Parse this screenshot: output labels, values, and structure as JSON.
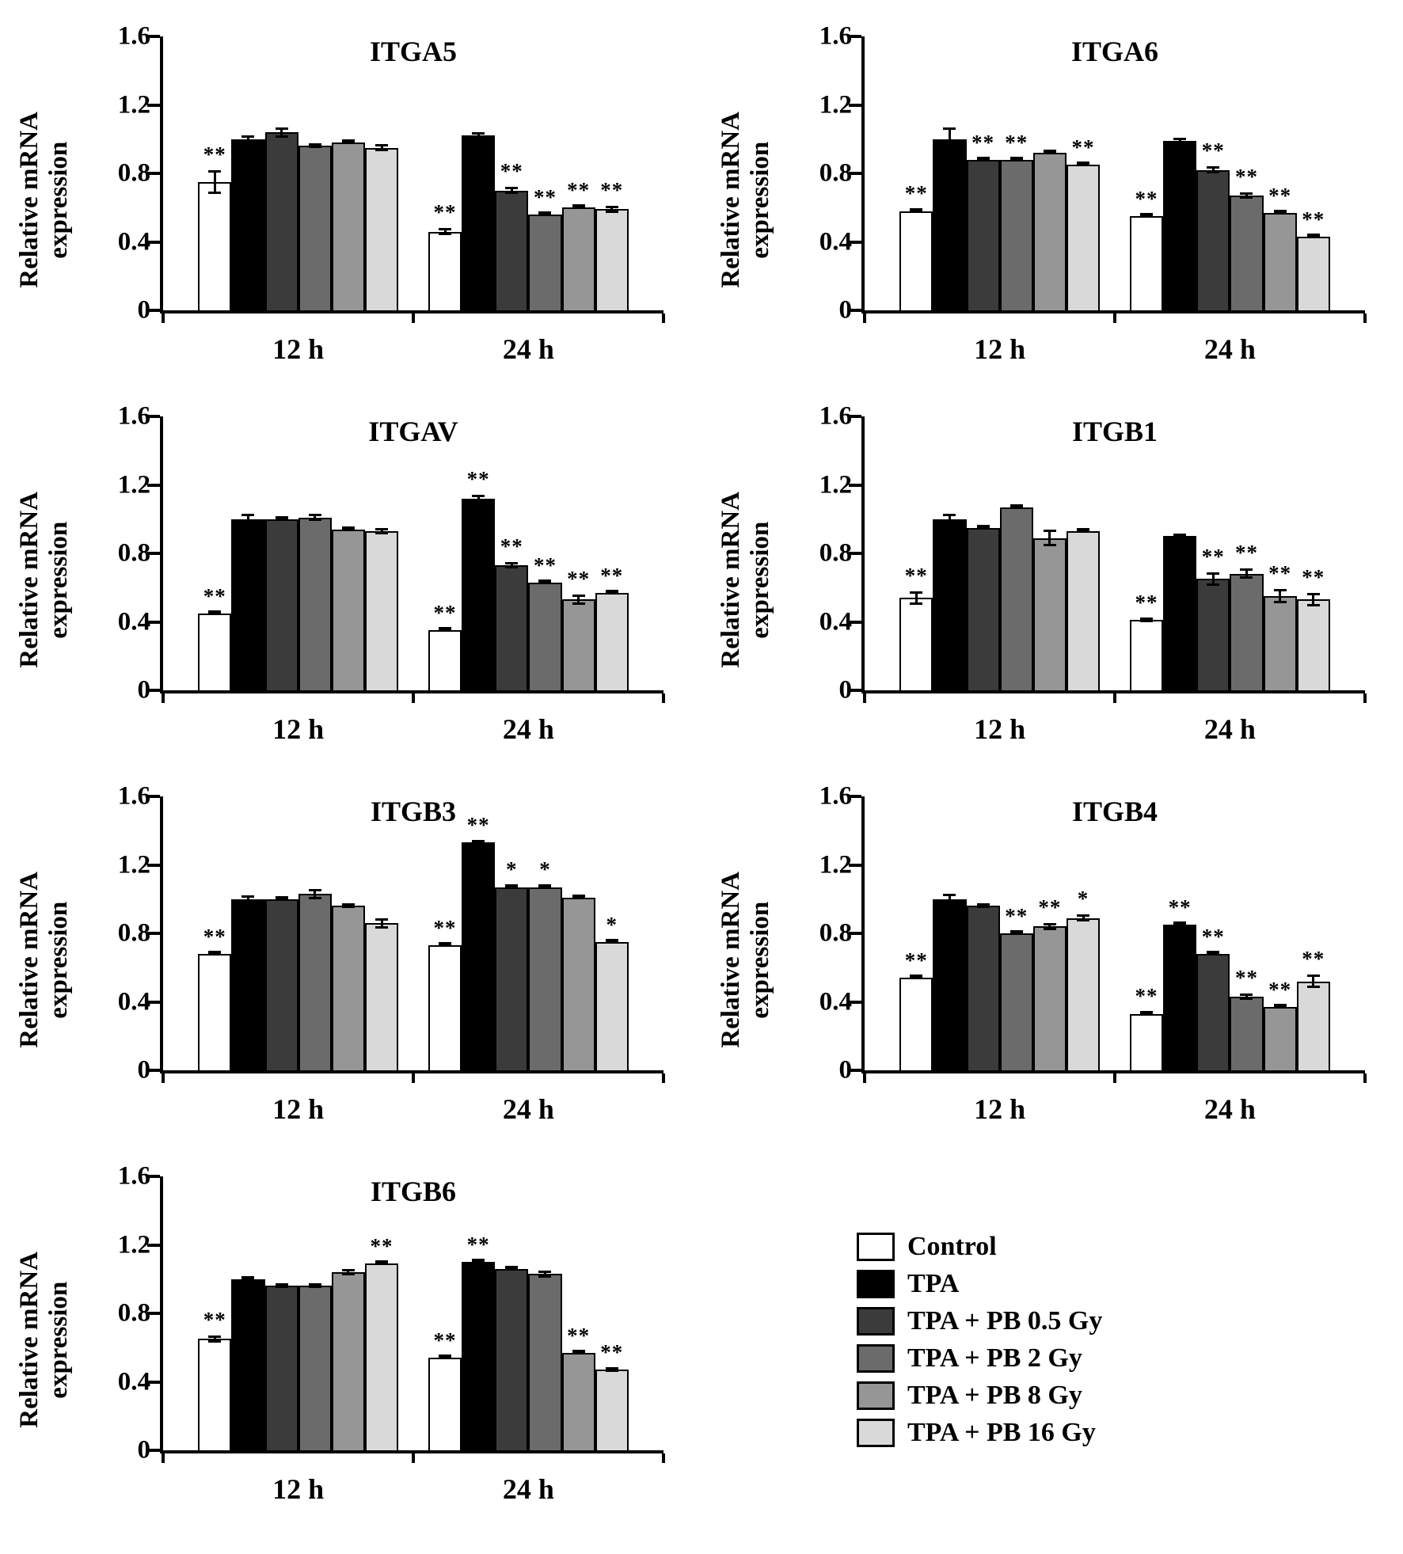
{
  "figure": {
    "ylabel": "Relative mRNA\nexpression",
    "groups": [
      "12 h",
      "24 h"
    ]
  },
  "legend": {
    "items": [
      {
        "label": "Control",
        "color": "#ffffff"
      },
      {
        "label": "TPA",
        "color": "#000000"
      },
      {
        "label": "TPA + PB 0.5 Gy",
        "color": "#3b3b3b"
      },
      {
        "label": "TPA + PB 2 Gy",
        "color": "#6b6b6b"
      },
      {
        "label": "TPA + PB 8 Gy",
        "color": "#969696"
      },
      {
        "label": "TPA + PB 16 Gy",
        "color": "#d9d9d9"
      }
    ]
  },
  "chart_data": [
    {
      "type": "bar",
      "title": "ITGA5",
      "ylabel": "Relative mRNA\nexpression",
      "ylim": [
        0,
        1.6
      ],
      "yticks": [
        0,
        0.4,
        0.8,
        1.2,
        1.6
      ],
      "groups": [
        "12 h",
        "24 h"
      ],
      "series": [
        {
          "name": "Control",
          "values": [
            0.75,
            0.46
          ],
          "errors": [
            0.07,
            0.02
          ],
          "sig": [
            "**",
            "**"
          ]
        },
        {
          "name": "TPA",
          "values": [
            1.0,
            1.02
          ],
          "errors": [
            0.02,
            0.02
          ],
          "sig": [
            "",
            ""
          ]
        },
        {
          "name": "TPA + PB 0.5 Gy",
          "values": [
            1.04,
            0.7
          ],
          "errors": [
            0.03,
            0.02
          ],
          "sig": [
            "",
            "**"
          ]
        },
        {
          "name": "TPA + PB 2 Gy",
          "values": [
            0.96,
            0.56
          ],
          "errors": [
            0.01,
            0.01
          ],
          "sig": [
            "",
            "**"
          ]
        },
        {
          "name": "TPA + PB 8 Gy",
          "values": [
            0.98,
            0.6
          ],
          "errors": [
            0.01,
            0.01
          ],
          "sig": [
            "",
            "**"
          ]
        },
        {
          "name": "TPA + PB 16 Gy",
          "values": [
            0.95,
            0.59
          ],
          "errors": [
            0.02,
            0.02
          ],
          "sig": [
            "",
            "**"
          ]
        }
      ]
    },
    {
      "type": "bar",
      "title": "ITGA6",
      "ylabel": "Relative mRNA\nexpression",
      "ylim": [
        0,
        1.6
      ],
      "yticks": [
        0,
        0.4,
        0.8,
        1.2,
        1.6
      ],
      "groups": [
        "12 h",
        "24 h"
      ],
      "series": [
        {
          "name": "Control",
          "values": [
            0.58,
            0.55
          ],
          "errors": [
            0.01,
            0.01
          ],
          "sig": [
            "**",
            "**"
          ]
        },
        {
          "name": "TPA",
          "values": [
            1.0,
            0.99
          ],
          "errors": [
            0.07,
            0.02
          ],
          "sig": [
            "",
            ""
          ]
        },
        {
          "name": "TPA + PB 0.5 Gy",
          "values": [
            0.88,
            0.82
          ],
          "errors": [
            0.01,
            0.02
          ],
          "sig": [
            "**",
            "**"
          ]
        },
        {
          "name": "TPA + PB 2 Gy",
          "values": [
            0.88,
            0.67
          ],
          "errors": [
            0.01,
            0.02
          ],
          "sig": [
            "**",
            "**"
          ]
        },
        {
          "name": "TPA + PB 8 Gy",
          "values": [
            0.92,
            0.57
          ],
          "errors": [
            0.01,
            0.01
          ],
          "sig": [
            "",
            "**"
          ]
        },
        {
          "name": "TPA + PB 16 Gy",
          "values": [
            0.85,
            0.43
          ],
          "errors": [
            0.01,
            0.01
          ],
          "sig": [
            "**",
            "**"
          ]
        }
      ]
    },
    {
      "type": "bar",
      "title": "ITGAV",
      "ylabel": "Relative mRNA\nexpression",
      "ylim": [
        0,
        1.6
      ],
      "yticks": [
        0,
        0.4,
        0.8,
        1.2,
        1.6
      ],
      "groups": [
        "12 h",
        "24 h"
      ],
      "series": [
        {
          "name": "Control",
          "values": [
            0.45,
            0.35
          ],
          "errors": [
            0.01,
            0.01
          ],
          "sig": [
            "**",
            "**"
          ]
        },
        {
          "name": "TPA",
          "values": [
            1.0,
            1.12
          ],
          "errors": [
            0.03,
            0.02
          ],
          "sig": [
            "",
            "**"
          ]
        },
        {
          "name": "TPA + PB 0.5 Gy",
          "values": [
            1.0,
            0.73
          ],
          "errors": [
            0.01,
            0.02
          ],
          "sig": [
            "",
            "**"
          ]
        },
        {
          "name": "TPA + PB 2 Gy",
          "values": [
            1.01,
            0.63
          ],
          "errors": [
            0.02,
            0.01
          ],
          "sig": [
            "",
            "**"
          ]
        },
        {
          "name": "TPA + PB 8 Gy",
          "values": [
            0.94,
            0.53
          ],
          "errors": [
            0.01,
            0.03
          ],
          "sig": [
            "",
            "**"
          ]
        },
        {
          "name": "TPA + PB 16 Gy",
          "values": [
            0.93,
            0.57
          ],
          "errors": [
            0.02,
            0.01
          ],
          "sig": [
            "",
            "**"
          ]
        }
      ]
    },
    {
      "type": "bar",
      "title": "ITGB1",
      "ylabel": "Relative mRNA\nexpression",
      "ylim": [
        0,
        1.6
      ],
      "yticks": [
        0,
        0.4,
        0.8,
        1.2,
        1.6
      ],
      "groups": [
        "12 h",
        "24 h"
      ],
      "series": [
        {
          "name": "Control",
          "values": [
            0.54,
            0.41
          ],
          "errors": [
            0.04,
            0.01
          ],
          "sig": [
            "**",
            "**"
          ]
        },
        {
          "name": "TPA",
          "values": [
            1.0,
            0.9
          ],
          "errors": [
            0.03,
            0.01
          ],
          "sig": [
            "",
            ""
          ]
        },
        {
          "name": "TPA + PB 0.5 Gy",
          "values": [
            0.95,
            0.65
          ],
          "errors": [
            0.01,
            0.04
          ],
          "sig": [
            "",
            "**"
          ]
        },
        {
          "name": "TPA + PB 2 Gy",
          "values": [
            1.07,
            0.68
          ],
          "errors": [
            0.01,
            0.03
          ],
          "sig": [
            "",
            "**"
          ]
        },
        {
          "name": "TPA + PB 8 Gy",
          "values": [
            0.89,
            0.55
          ],
          "errors": [
            0.05,
            0.04
          ],
          "sig": [
            "",
            "**"
          ]
        },
        {
          "name": "TPA + PB 16 Gy",
          "values": [
            0.93,
            0.53
          ],
          "errors": [
            0.01,
            0.04
          ],
          "sig": [
            "",
            "**"
          ]
        }
      ]
    },
    {
      "type": "bar",
      "title": "ITGB3",
      "ylabel": "Relative mRNA\nexpression",
      "ylim": [
        0,
        1.6
      ],
      "yticks": [
        0,
        0.4,
        0.8,
        1.2,
        1.6
      ],
      "groups": [
        "12 h",
        "24 h"
      ],
      "series": [
        {
          "name": "Control",
          "values": [
            0.68,
            0.73
          ],
          "errors": [
            0.01,
            0.01
          ],
          "sig": [
            "**",
            "**"
          ]
        },
        {
          "name": "TPA",
          "values": [
            1.0,
            1.33
          ],
          "errors": [
            0.02,
            0.01
          ],
          "sig": [
            "",
            "**"
          ]
        },
        {
          "name": "TPA + PB 0.5 Gy",
          "values": [
            1.0,
            1.07
          ],
          "errors": [
            0.01,
            0.01
          ],
          "sig": [
            "",
            "*"
          ]
        },
        {
          "name": "TPA + PB 2 Gy",
          "values": [
            1.03,
            1.07
          ],
          "errors": [
            0.03,
            0.01
          ],
          "sig": [
            "",
            "*"
          ]
        },
        {
          "name": "TPA + PB 8 Gy",
          "values": [
            0.96,
            1.01
          ],
          "errors": [
            0.01,
            0.01
          ],
          "sig": [
            "",
            ""
          ]
        },
        {
          "name": "TPA + PB 16 Gy",
          "values": [
            0.86,
            0.75
          ],
          "errors": [
            0.03,
            0.01
          ],
          "sig": [
            "",
            "*"
          ]
        }
      ]
    },
    {
      "type": "bar",
      "title": "ITGB4",
      "ylabel": "Relative mRNA\nexpression",
      "ylim": [
        0,
        1.6
      ],
      "yticks": [
        0,
        0.4,
        0.8,
        1.2,
        1.6
      ],
      "groups": [
        "12 h",
        "24 h"
      ],
      "series": [
        {
          "name": "Control",
          "values": [
            0.54,
            0.33
          ],
          "errors": [
            0.01,
            0.01
          ],
          "sig": [
            "**",
            "**"
          ]
        },
        {
          "name": "TPA",
          "values": [
            1.0,
            0.85
          ],
          "errors": [
            0.03,
            0.01
          ],
          "sig": [
            "",
            "**"
          ]
        },
        {
          "name": "TPA + PB 0.5 Gy",
          "values": [
            0.96,
            0.68
          ],
          "errors": [
            0.01,
            0.01
          ],
          "sig": [
            "",
            "**"
          ]
        },
        {
          "name": "TPA + PB 2 Gy",
          "values": [
            0.8,
            0.43
          ],
          "errors": [
            0.01,
            0.02
          ],
          "sig": [
            "**",
            "**"
          ]
        },
        {
          "name": "TPA + PB 8 Gy",
          "values": [
            0.84,
            0.37
          ],
          "errors": [
            0.02,
            0.01
          ],
          "sig": [
            "**",
            "**"
          ]
        },
        {
          "name": "TPA + PB 16 Gy",
          "values": [
            0.89,
            0.52
          ],
          "errors": [
            0.02,
            0.04
          ],
          "sig": [
            "*",
            "**"
          ]
        }
      ]
    },
    {
      "type": "bar",
      "title": "ITGB6",
      "ylabel": "Relative mRNA\nexpression",
      "ylim": [
        0,
        1.6
      ],
      "yticks": [
        0,
        0.4,
        0.8,
        1.2,
        1.6
      ],
      "groups": [
        "12 h",
        "24 h"
      ],
      "series": [
        {
          "name": "Control",
          "values": [
            0.65,
            0.54
          ],
          "errors": [
            0.02,
            0.01
          ],
          "sig": [
            "**",
            "**"
          ]
        },
        {
          "name": "TPA",
          "values": [
            1.0,
            1.1
          ],
          "errors": [
            0.01,
            0.01
          ],
          "sig": [
            "",
            "**"
          ]
        },
        {
          "name": "TPA + PB 0.5 Gy",
          "values": [
            0.96,
            1.06
          ],
          "errors": [
            0.01,
            0.01
          ],
          "sig": [
            "",
            ""
          ]
        },
        {
          "name": "TPA + PB 2 Gy",
          "values": [
            0.96,
            1.03
          ],
          "errors": [
            0.01,
            0.02
          ],
          "sig": [
            "",
            ""
          ]
        },
        {
          "name": "TPA + PB 8 Gy",
          "values": [
            1.04,
            0.57
          ],
          "errors": [
            0.02,
            0.01
          ],
          "sig": [
            "",
            "**"
          ]
        },
        {
          "name": "TPA + PB 16 Gy",
          "values": [
            1.09,
            0.47
          ],
          "errors": [
            0.01,
            0.01
          ],
          "sig": [
            "**",
            "**"
          ]
        }
      ]
    }
  ]
}
